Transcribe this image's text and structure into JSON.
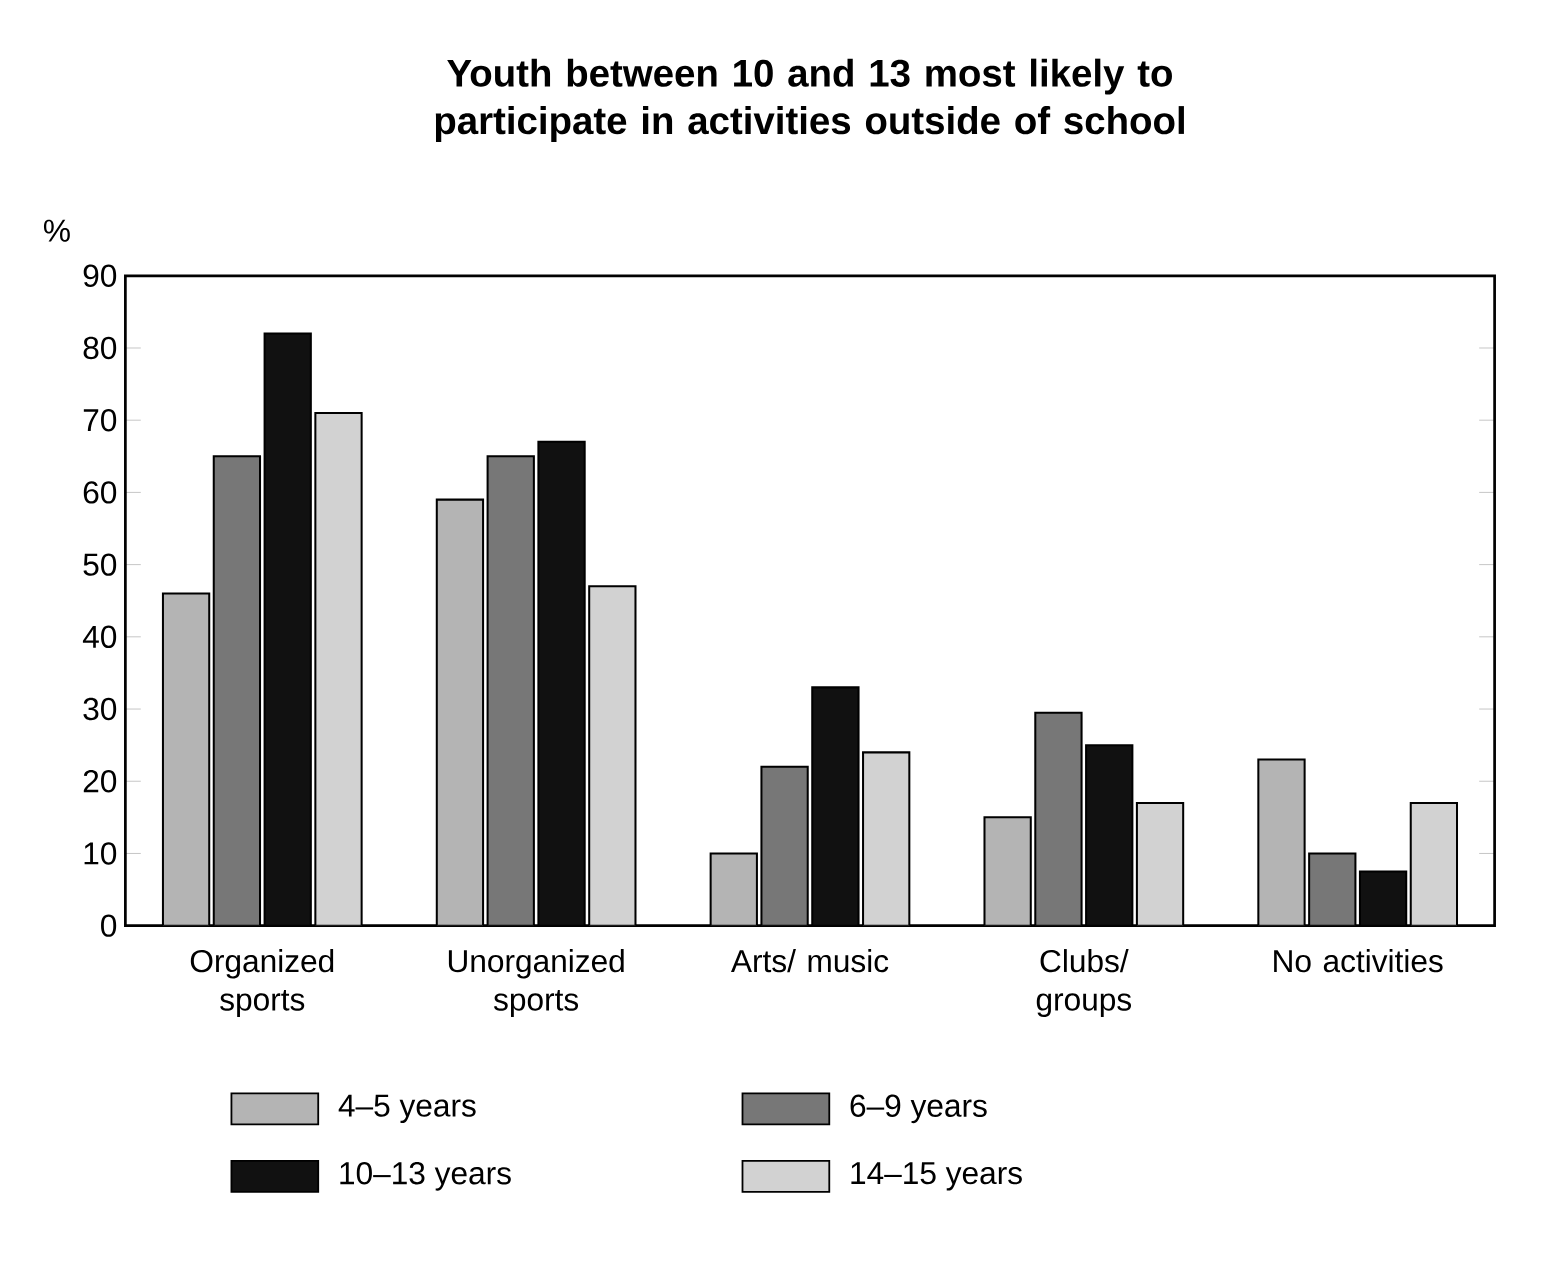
{
  "chart_data": {
    "type": "bar",
    "title": "Youth between 10 and 13 most likely to participate in activities outside of school",
    "ylabel": "%",
    "categories": [
      "Organized sports",
      "Unorganized sports",
      "Arts/ music",
      "Clubs/ groups",
      "No activities"
    ],
    "series": [
      {
        "name": "4–5 years",
        "color": "#b4b4b4",
        "values": [
          46,
          59,
          10,
          15,
          23
        ]
      },
      {
        "name": "6–9 years",
        "color": "#777777",
        "values": [
          65,
          65,
          22,
          29.5,
          10
        ]
      },
      {
        "name": "10–13 years",
        "color": "#111111",
        "values": [
          82,
          67,
          33,
          25,
          7.5
        ]
      },
      {
        "name": "14–15 years",
        "color": "#d2d2d2",
        "values": [
          71,
          47,
          24,
          17,
          17
        ]
      }
    ],
    "ylim": [
      0,
      90
    ],
    "yticks": [
      0,
      10,
      20,
      30,
      40,
      50,
      60,
      70,
      80,
      90
    ],
    "grid": false,
    "legend": "bottom"
  }
}
